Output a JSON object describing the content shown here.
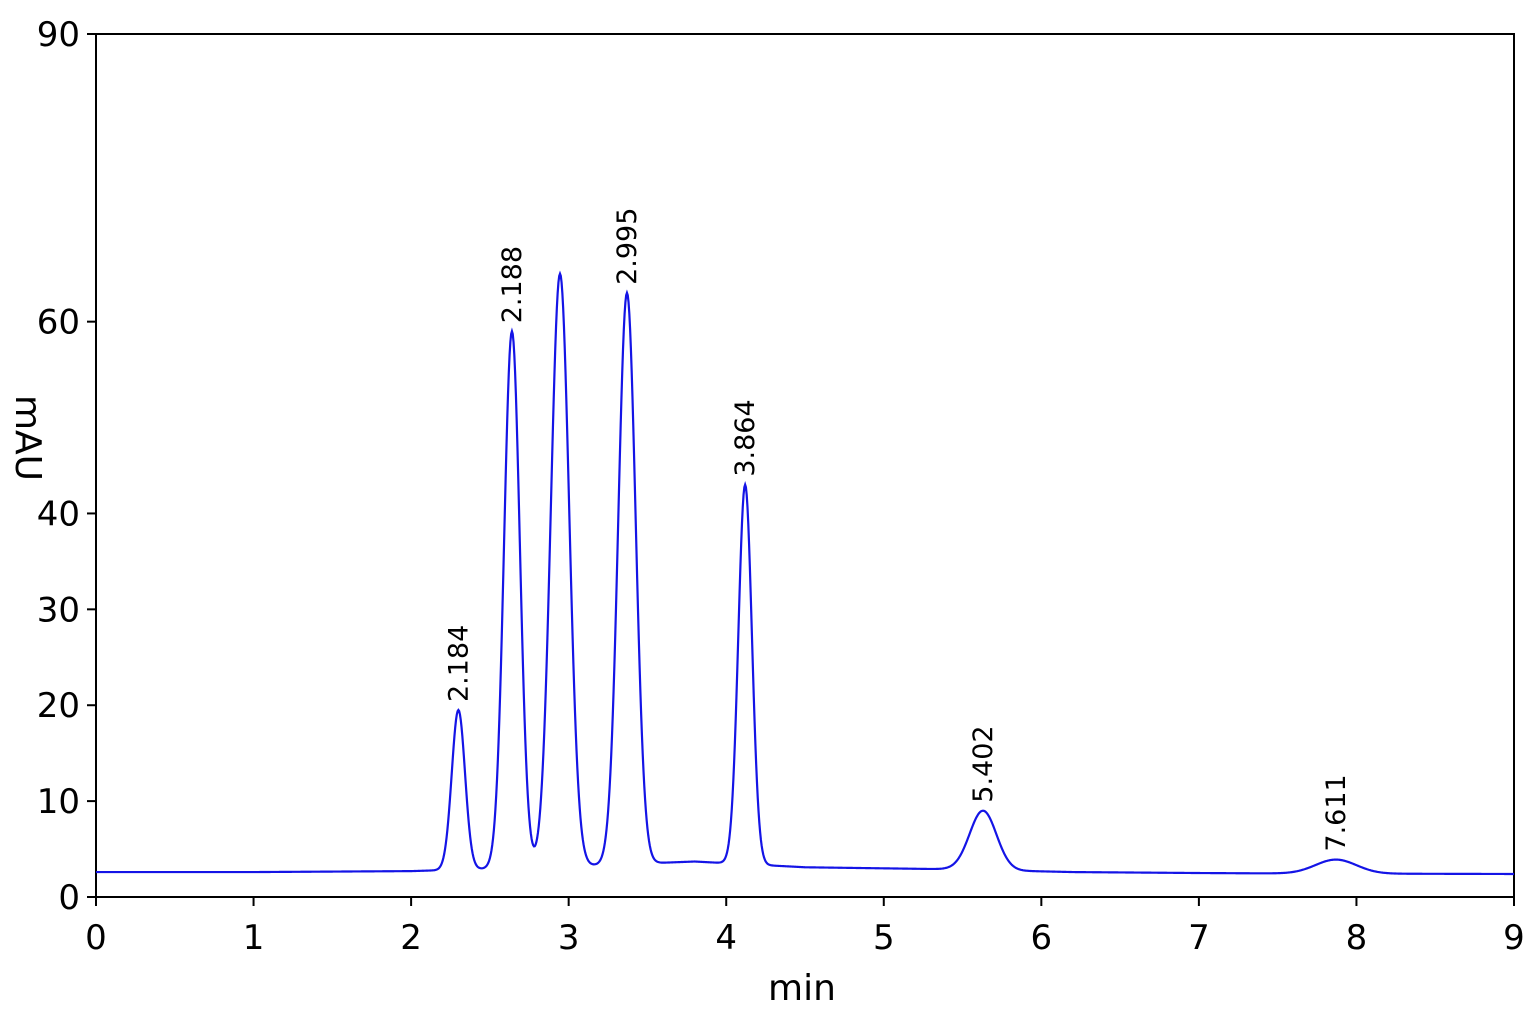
{
  "chart_data": {
    "type": "line",
    "title": "",
    "xlabel": "min",
    "ylabel": "mAU",
    "xlim": [
      0,
      9
    ],
    "ylim": [
      0,
      90
    ],
    "x_ticks": [
      0,
      1,
      2,
      3,
      4,
      5,
      6,
      7,
      8,
      9
    ],
    "y_ticks": [
      0,
      10,
      20,
      30,
      40,
      60,
      90
    ],
    "grid": false,
    "colors": {
      "series": "#1414e6",
      "axis": "#000000"
    },
    "series": [
      {
        "baseline": [
          [
            0,
            2.6
          ],
          [
            1,
            2.6
          ],
          [
            2,
            2.7
          ],
          [
            3,
            3.2
          ],
          [
            3.8,
            3.7
          ],
          [
            4.5,
            3.1
          ],
          [
            5.4,
            2.9
          ],
          [
            6.2,
            2.6
          ],
          [
            7,
            2.5
          ],
          [
            7.6,
            2.45
          ],
          [
            9,
            2.4
          ]
        ],
        "peaks": [
          {
            "rt": 2.3,
            "height": 19.5,
            "width": 0.042
          },
          {
            "rt": 2.64,
            "height": 59.0,
            "width": 0.05
          },
          {
            "rt": 2.945,
            "height": 65.0,
            "width": 0.058
          },
          {
            "rt": 3.37,
            "height": 63.0,
            "width": 0.055
          },
          {
            "rt": 4.12,
            "height": 43.0,
            "width": 0.043
          },
          {
            "rt": 5.63,
            "height": 9.0,
            "width": 0.085
          },
          {
            "rt": 7.87,
            "height": 3.9,
            "width": 0.13
          }
        ]
      }
    ],
    "annotations": [
      {
        "text": "2.184",
        "x": 2.3,
        "y": 19.5
      },
      {
        "text": "2.188",
        "x": 2.64,
        "y": 59.0
      },
      {
        "text": "2.995",
        "x": 3.37,
        "y": 63.0
      },
      {
        "text": "3.864",
        "x": 4.12,
        "y": 43.0
      },
      {
        "text": "5.402",
        "x": 5.63,
        "y": 9.0
      },
      {
        "text": "7.611",
        "x": 7.87,
        "y": 3.9
      }
    ]
  }
}
